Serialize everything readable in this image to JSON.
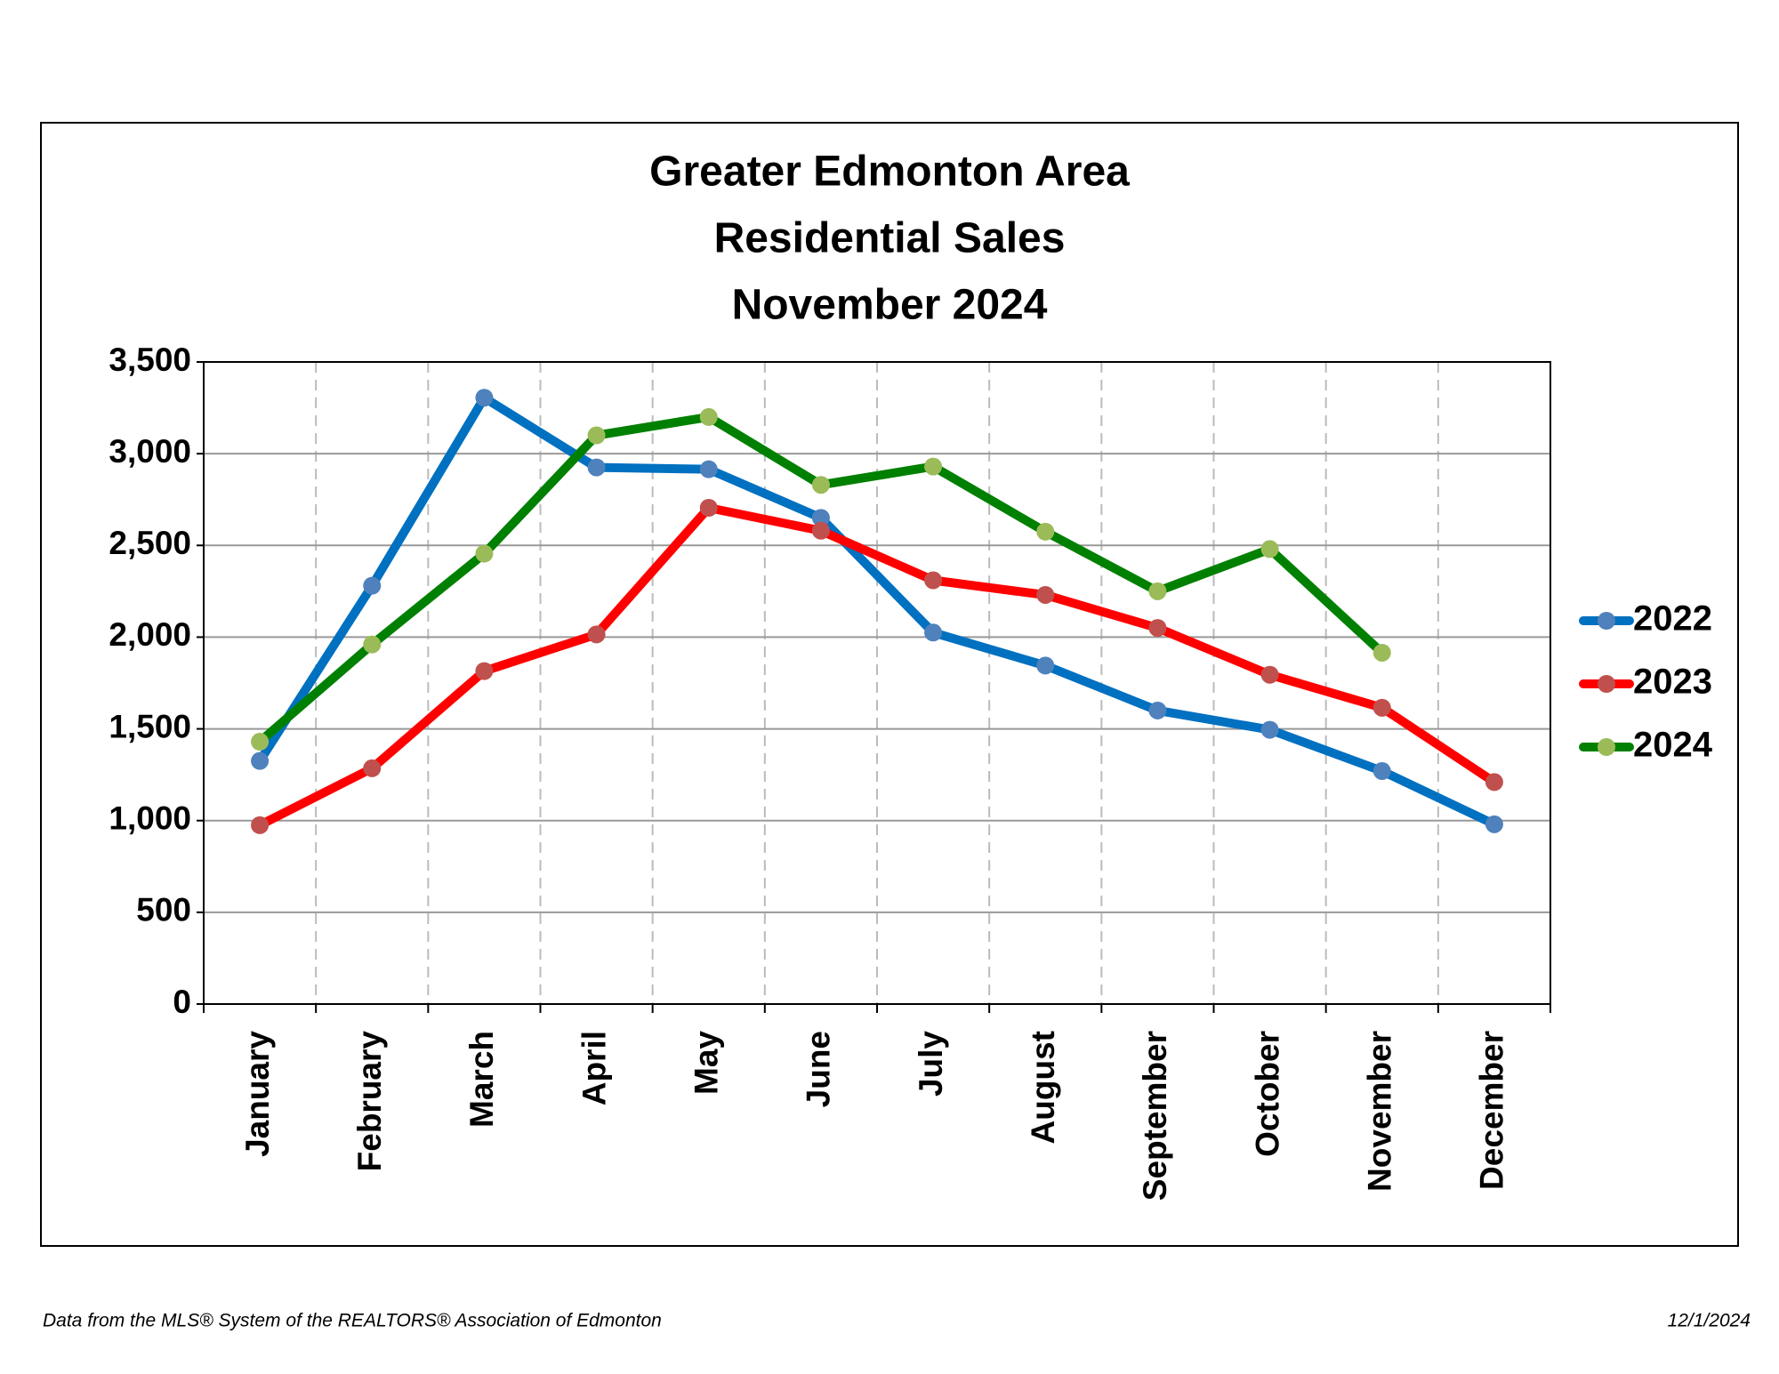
{
  "chart_data": {
    "type": "line",
    "title": [
      "Greater Edmonton Area",
      "Residential Sales",
      "November 2024"
    ],
    "categories": [
      "January",
      "February",
      "March",
      "April",
      "May",
      "June",
      "July",
      "August",
      "September",
      "October",
      "November",
      "December"
    ],
    "series": [
      {
        "name": "2022",
        "color": "#0070c0",
        "marker_color": "#4f81bd",
        "values": [
          1325,
          2280,
          3305,
          2925,
          2915,
          2650,
          2025,
          1845,
          1600,
          1495,
          1270,
          980
        ]
      },
      {
        "name": "2023",
        "color": "#ff0000",
        "marker_color": "#c0504d",
        "values": [
          975,
          1285,
          1815,
          2015,
          2705,
          2580,
          2310,
          2230,
          2050,
          1795,
          1615,
          1210
        ]
      },
      {
        "name": "2024",
        "color": "#008000",
        "marker_color": "#9bbb59",
        "values": [
          1430,
          1960,
          2455,
          3100,
          3200,
          2830,
          2930,
          2575,
          2250,
          2480,
          1915,
          null
        ]
      }
    ],
    "ylim": [
      0,
      3500
    ],
    "yticks": [
      0,
      500,
      {
        "value": 1000,
        "label": "1,000"
      },
      {
        "value": 1500,
        "label": "1,500"
      },
      {
        "value": 2000,
        "label": "2,000"
      },
      {
        "value": 2500,
        "label": "2,500"
      },
      {
        "value": 3000,
        "label": "3,000"
      },
      {
        "value": 3500,
        "label": "3,500"
      }
    ],
    "grid": true,
    "legend": "right"
  },
  "footer": {
    "source": "Data from the MLS® System of the REALTORS® Association of Edmonton",
    "date": "12/1/2024"
  }
}
